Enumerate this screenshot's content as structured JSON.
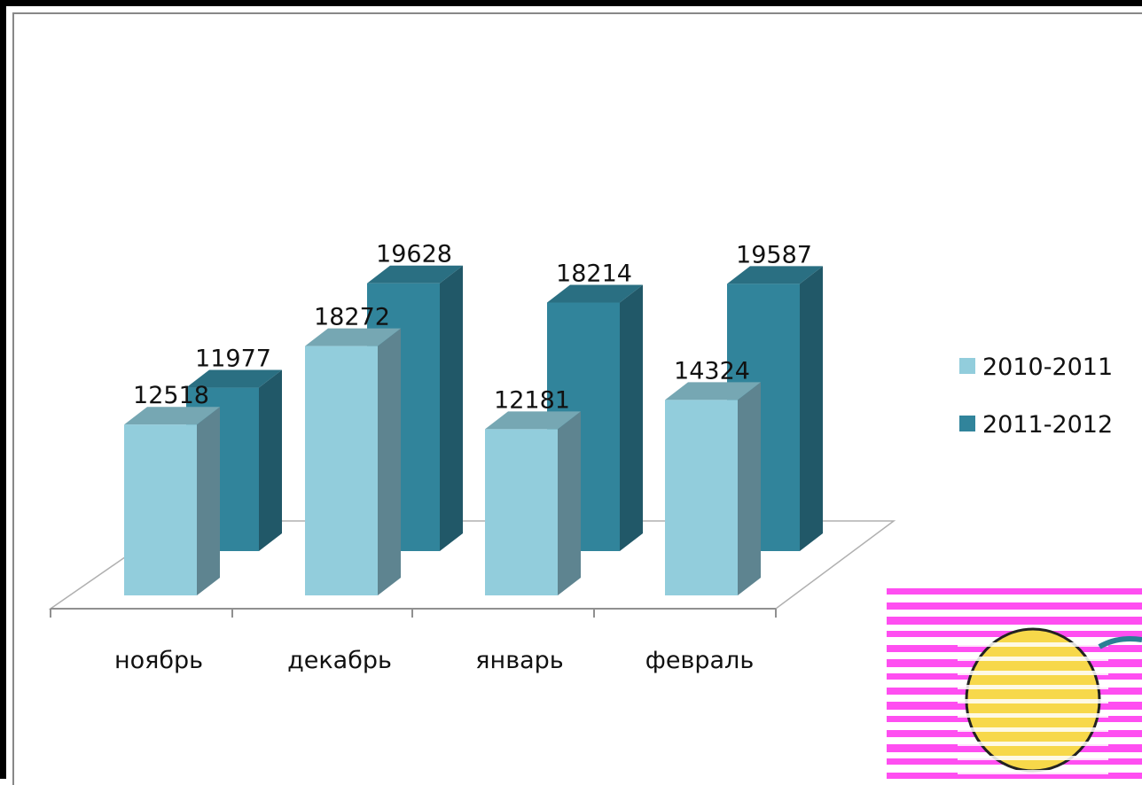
{
  "chart_data": {
    "type": "bar",
    "categories": [
      "ноябрь",
      "декабрь",
      "январь",
      "февраль"
    ],
    "series": [
      {
        "name": "2010-2011",
        "values": [
          12518,
          18272,
          12181,
          14324
        ]
      },
      {
        "name": "2011-2012",
        "values": [
          11977,
          19628,
          18214,
          19587
        ]
      }
    ],
    "colors": {
      "s0_front": "#92CDDC",
      "s0_side": "#5E8490",
      "s0_top": "#76A7B3",
      "s1_front": "#31849B",
      "s1_side": "#215868",
      "s1_top": "#2A6F82"
    },
    "legend_position": "right",
    "grid": false,
    "three_d": true
  }
}
